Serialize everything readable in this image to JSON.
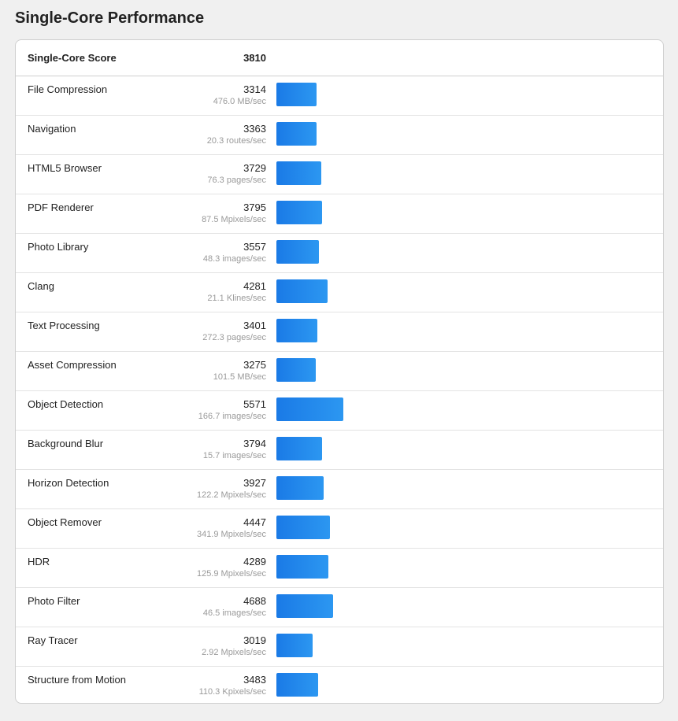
{
  "page": {
    "title": "Single-Core Performance"
  },
  "chart_data": {
    "type": "bar",
    "title": "Single-Core Performance",
    "summary": {
      "label": "Single-Core Score",
      "value": "3810"
    },
    "bar_color": "#1f86ec",
    "x_range": [
      0,
      7500
    ],
    "workloads": [
      {
        "name": "File Compression",
        "score": 3314,
        "score_text": "3314",
        "rate": "476.0 MB/sec"
      },
      {
        "name": "Navigation",
        "score": 3363,
        "score_text": "3363",
        "rate": "20.3 routes/sec"
      },
      {
        "name": "HTML5 Browser",
        "score": 3729,
        "score_text": "3729",
        "rate": "76.3 pages/sec"
      },
      {
        "name": "PDF Renderer",
        "score": 3795,
        "score_text": "3795",
        "rate": "87.5 Mpixels/sec"
      },
      {
        "name": "Photo Library",
        "score": 3557,
        "score_text": "3557",
        "rate": "48.3 images/sec"
      },
      {
        "name": "Clang",
        "score": 4281,
        "score_text": "4281",
        "rate": "21.1 Klines/sec"
      },
      {
        "name": "Text Processing",
        "score": 3401,
        "score_text": "3401",
        "rate": "272.3 pages/sec"
      },
      {
        "name": "Asset Compression",
        "score": 3275,
        "score_text": "3275",
        "rate": "101.5 MB/sec"
      },
      {
        "name": "Object Detection",
        "score": 5571,
        "score_text": "5571",
        "rate": "166.7 images/sec"
      },
      {
        "name": "Background Blur",
        "score": 3794,
        "score_text": "3794",
        "rate": "15.7 images/sec"
      },
      {
        "name": "Horizon Detection",
        "score": 3927,
        "score_text": "3927",
        "rate": "122.2 Mpixels/sec"
      },
      {
        "name": "Object Remover",
        "score": 4447,
        "score_text": "4447",
        "rate": "341.9 Mpixels/sec"
      },
      {
        "name": "HDR",
        "score": 4289,
        "score_text": "4289",
        "rate": "125.9 Mpixels/sec"
      },
      {
        "name": "Photo Filter",
        "score": 4688,
        "score_text": "4688",
        "rate": "46.5 images/sec"
      },
      {
        "name": "Ray Tracer",
        "score": 3019,
        "score_text": "3019",
        "rate": "2.92 Mpixels/sec"
      },
      {
        "name": "Structure from Motion",
        "score": 3483,
        "score_text": "3483",
        "rate": "110.3 Kpixels/sec"
      }
    ]
  }
}
